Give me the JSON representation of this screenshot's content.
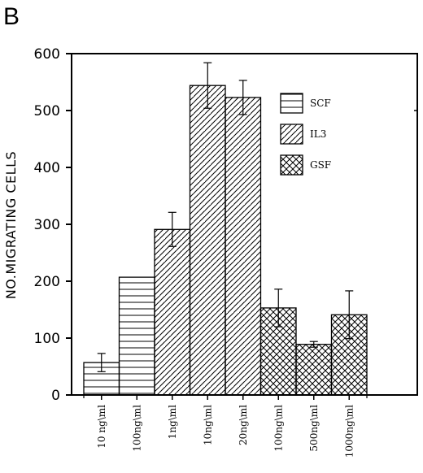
{
  "panel_label": "B",
  "chart_data": {
    "type": "bar",
    "title": "",
    "xlabel": "",
    "ylabel": "NO.MIGRATING CELLS",
    "ylim": [
      0,
      600
    ],
    "yticks": [
      0,
      100,
      200,
      300,
      400,
      500,
      600
    ],
    "categories": [
      "10 ng\\ml",
      "100ng\\ml",
      "1ng\\ml",
      "10ng\\ml",
      "20ng\\ml",
      "100ng\\ml",
      "500ng\\ml",
      "1000ng\\ml"
    ],
    "values": [
      57,
      207,
      291,
      544,
      523,
      153,
      89,
      141
    ],
    "errors": [
      16,
      0,
      30,
      40,
      30,
      33,
      5,
      42
    ],
    "groups": [
      "SCF",
      "SCF",
      "IL3",
      "IL3",
      "IL3",
      "GSF",
      "GSF",
      "GSF"
    ],
    "legend": [
      {
        "name": "SCF",
        "pattern": "horizontal"
      },
      {
        "name": "IL3",
        "pattern": "diagonal"
      },
      {
        "name": "GSF",
        "pattern": "crosshatch"
      }
    ],
    "legend_position": "top-right",
    "grid": false
  }
}
